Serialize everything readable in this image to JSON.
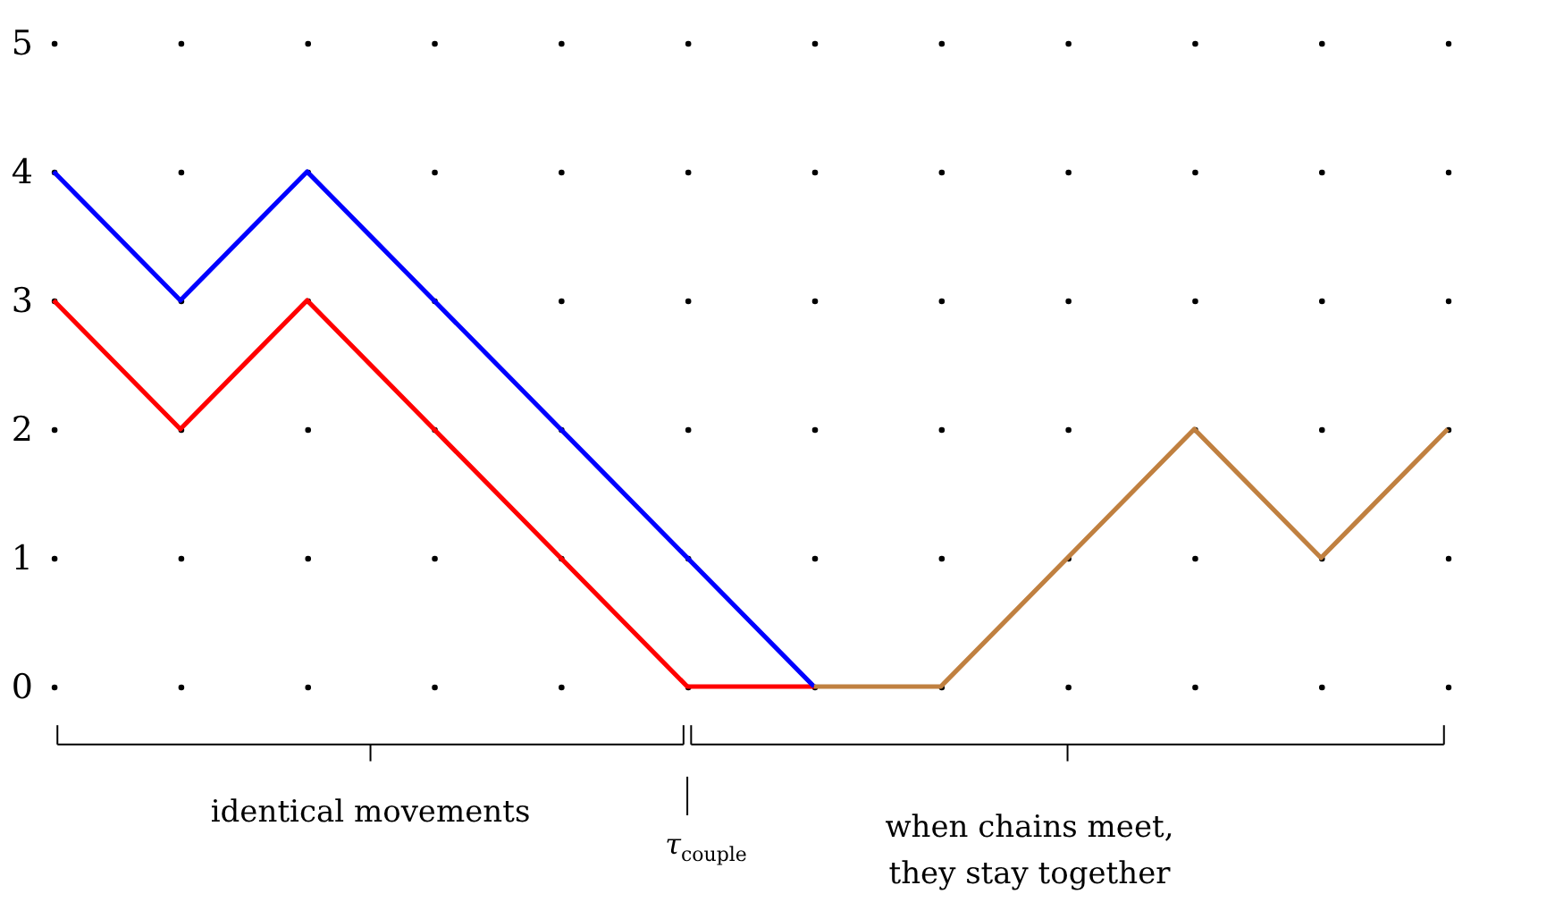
{
  "chart_data": {
    "type": "line",
    "categories": [
      null,
      null,
      null,
      null,
      null,
      null,
      null,
      null,
      null,
      null,
      null,
      null
    ],
    "series": [
      {
        "color": "#ff0000",
        "values": [
          3,
          2,
          3,
          2,
          1,
          0,
          0,
          null,
          null,
          null,
          null,
          null
        ]
      },
      {
        "color": "#0000ff",
        "values": [
          4,
          3,
          4,
          3,
          2,
          1,
          0,
          null,
          null,
          null,
          null,
          null
        ]
      },
      {
        "color": "#c08040",
        "values": [
          null,
          null,
          null,
          null,
          null,
          null,
          0,
          0,
          1,
          2,
          1,
          2
        ]
      }
    ],
    "ylim": [
      0,
      5
    ],
    "yticks": [
      0,
      1,
      2,
      3,
      4,
      5
    ],
    "tick_labels": "y",
    "grid": "y",
    "line_style": "solid",
    "annotations": [
      "identical movements",
      "τ$_{couple}$",
      "when chains meet,\nthey stay together"
    ]
  }
}
